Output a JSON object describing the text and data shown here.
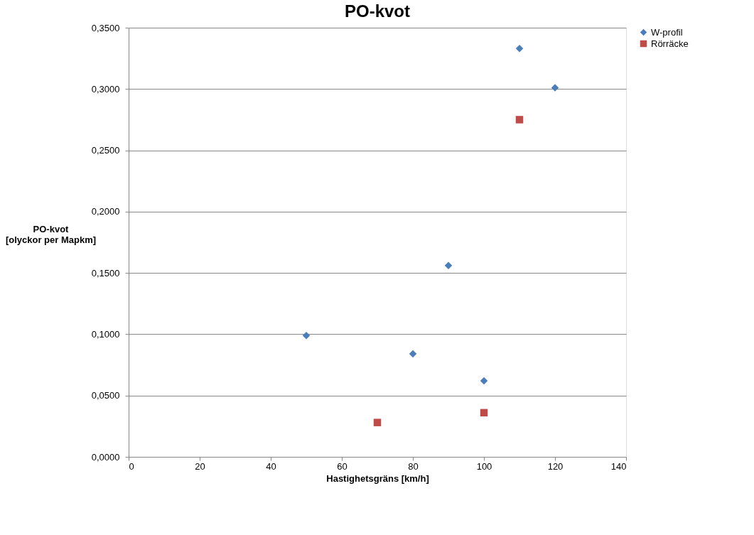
{
  "chart_data": {
    "type": "scatter",
    "title": "PO-kvot",
    "xlabel": "Hastighetsgräns [km/h]",
    "ylabel": "PO-kvot\n[olyckor  per Mapkm]",
    "series": [
      {
        "name": "W-profil",
        "color": "#4a7ebb",
        "marker": "diamond",
        "x": [
          50,
          80,
          90,
          100,
          110,
          120
        ],
        "values": [
          0.099,
          0.084,
          0.156,
          0.062,
          0.333,
          0.301
        ]
      },
      {
        "name": "Rörräcke",
        "color": "#be4b48",
        "marker": "square",
        "x": [
          70,
          100,
          110
        ],
        "values": [
          0.028,
          0.036,
          0.275
        ]
      }
    ],
    "xlim": [
      0,
      140
    ],
    "xticks": [
      0,
      20,
      40,
      60,
      80,
      100,
      120,
      140
    ],
    "ylim": [
      0,
      0.35
    ],
    "yticks": [
      {
        "value": 0,
        "label": "0,0000"
      },
      {
        "value": 0.05,
        "label": "0,0500"
      },
      {
        "value": 0.1,
        "label": "0,1000"
      },
      {
        "value": 0.15,
        "label": "0,1500"
      },
      {
        "value": 0.2,
        "label": "0,2000"
      },
      {
        "value": 0.25,
        "label": "0,2500"
      },
      {
        "value": 0.3,
        "label": "0,3000"
      },
      {
        "value": 0.35,
        "label": "0,3500"
      }
    ],
    "grid": "y",
    "legend": "right"
  }
}
